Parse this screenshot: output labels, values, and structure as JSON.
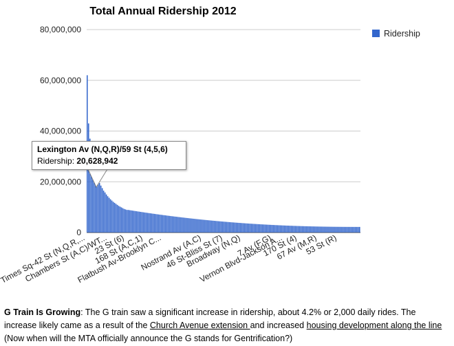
{
  "chart_data": {
    "type": "bar",
    "title": "Total Annual Ridership 2012",
    "xlabel": "",
    "ylabel": "",
    "ylim": [
      0,
      80000000
    ],
    "yticks": [
      "80,000,000",
      "60,000,000",
      "40,000,000",
      "20,000,000",
      "0"
    ],
    "ytick_values": [
      80000000,
      60000000,
      40000000,
      20000000,
      0
    ],
    "grid": true,
    "legend_position": "right",
    "series": [
      {
        "name": "Ridership",
        "color": "#3366cc",
        "num_bars": 200,
        "values_description": "sorted descending",
        "top_values": [
          62000000,
          43000000,
          37000000,
          33000000,
          28000000,
          25000000,
          23000000,
          21500000,
          20628942,
          19500000,
          18500000,
          17500000,
          16500000,
          15800000,
          15000000,
          14300000,
          13700000,
          13100000,
          12600000,
          12100000,
          11700000,
          11300000,
          10900000,
          10500000,
          10200000,
          9900000,
          9600000,
          9300000,
          9100000,
          8900000
        ]
      }
    ],
    "category_labels_shown": [
      "Times Sq-42 St (N,Q,R,...",
      "Chambers St (A,C)/WT...",
      "23 St (6)",
      "168 St (A,C,1)",
      "Flatbush Av-Brooklyn C...",
      "Nostrand Av (A,C)",
      "46 St-Bliss St (7)",
      "Broadway (N,Q)",
      "7 Av (F,G)",
      "Vernon Blvd-Jackson A...",
      "170 St (4)",
      "67 Av (M,R)",
      "53 St (R)"
    ],
    "highlighted": {
      "label": "Lexington Av (N,Q,R)/59 St (4,5,6)",
      "value_label": "Ridership:",
      "value": "20,628,942"
    }
  },
  "caption": {
    "heading": "G Train Is Growing",
    "text1": ": The G train saw a significant increase in ridership, about 4.2% or 2,000 daily rides. The increase likely came as a result of the ",
    "link1": "Church Avenue extension ",
    "text2": "and increased ",
    "link2": "housing development along the line",
    "text3": " (Now when will the MTA officially announce the G stands for Gentrification?)"
  }
}
